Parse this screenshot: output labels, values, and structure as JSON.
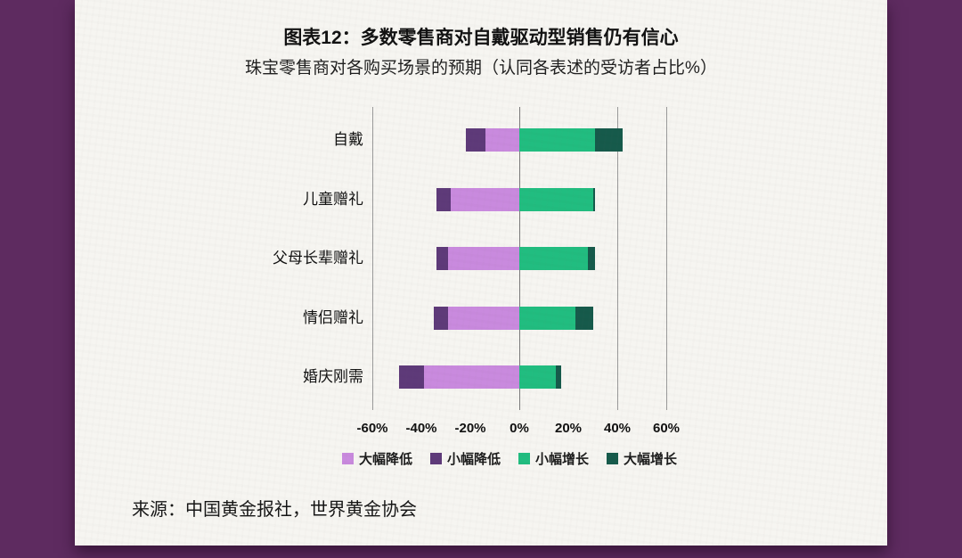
{
  "page": {
    "background_color": "#5e2b60",
    "paper_color": "#f6f5f1"
  },
  "header": {
    "title": "图表12：多数零售商对自戴驱动型销售仍有信心",
    "subtitle": "珠宝零售商对各购买场景的预期（认同各表述的受访者占比%）"
  },
  "source": "来源：中国黄金报社，世界黄金协会",
  "chart_data": {
    "type": "bar",
    "variant": "horizontal-diverging-stacked",
    "title": "图表12：多数零售商对自戴驱动型销售仍有信心",
    "subtitle": "珠宝零售商对各购买场景的预期（认同各表述的受访者占比%）",
    "categories": [
      "自戴",
      "儿童赠礼",
      "父母长辈赠礼",
      "情侣赠礼",
      "婚庆刚需"
    ],
    "unit": "%",
    "series": [
      {
        "name": "大幅降低",
        "side": "negative",
        "color": "#c98ade",
        "values": [
          14,
          28,
          29,
          29,
          39
        ]
      },
      {
        "name": "小幅降低",
        "side": "negative",
        "color": "#5e3a79",
        "values": [
          8,
          6,
          5,
          6,
          10
        ]
      },
      {
        "name": "小幅增长",
        "side": "positive",
        "color": "#21bd80",
        "values": [
          31,
          30,
          28,
          23,
          15
        ]
      },
      {
        "name": "大幅增长",
        "side": "positive",
        "color": "#165a4b",
        "values": [
          11,
          1,
          3,
          7,
          2
        ]
      }
    ],
    "xlim": [
      -60,
      60
    ],
    "x_ticks": [
      "-60%",
      "-40%",
      "-20%",
      "0%",
      "20%",
      "40%",
      "60%"
    ],
    "x_tick_values": [
      -60,
      -40,
      -20,
      0,
      20,
      40,
      60
    ],
    "gridline_values": [
      -60,
      0,
      40,
      60
    ],
    "grid": "vertical-partial",
    "legend_position": "bottom",
    "legend": [
      "大幅降低",
      "小幅降低",
      "小幅增长",
      "大幅增长"
    ]
  }
}
